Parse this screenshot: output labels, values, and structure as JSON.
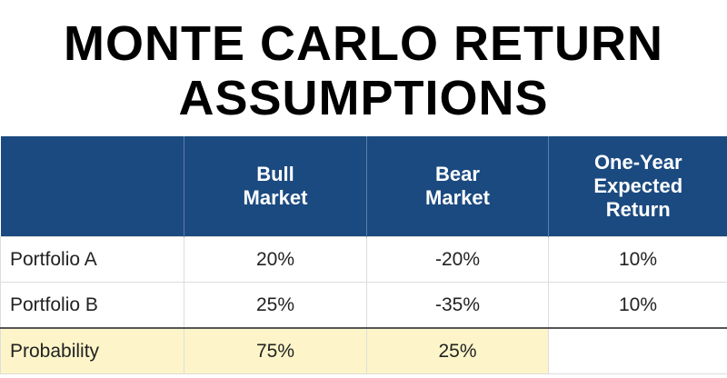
{
  "title": "MONTE CARLO RETURN ASSUMPTIONS",
  "table": {
    "columns": [
      "Bull Market",
      "Bear Market",
      "One-Year Expected Return"
    ],
    "rows": [
      [
        "Portfolio A",
        "20%",
        "-20%",
        "10%"
      ],
      [
        "Portfolio B",
        "25%",
        "-35%",
        "10%"
      ],
      [
        "Probability",
        "75%",
        "25%"
      ]
    ]
  }
}
